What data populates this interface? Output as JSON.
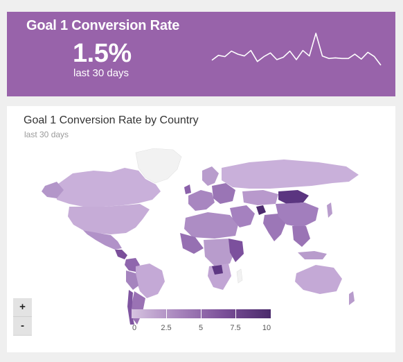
{
  "kpi": {
    "title": "Goal 1 Conversion Rate",
    "value": "1.5%",
    "period": "last 30 days",
    "sparkline": [
      1.4,
      1.48,
      1.46,
      1.55,
      1.5,
      1.47,
      1.56,
      1.38,
      1.46,
      1.52,
      1.41,
      1.45,
      1.55,
      1.41,
      1.56,
      1.47,
      1.84,
      1.47,
      1.43,
      1.44,
      1.43,
      1.43,
      1.5,
      1.42,
      1.53,
      1.46,
      1.32
    ],
    "background_color": "#9863aa",
    "line_color": "#ffffff"
  },
  "map_card": {
    "title": "Goal 1 Conversion Rate by Country",
    "period": "last 30 days",
    "zoom_in_label": "+",
    "zoom_out_label": "-",
    "legend": {
      "ticks": [
        "0",
        "2.5",
        "5",
        "7.5",
        "10"
      ],
      "min": 0,
      "max": 10,
      "colors": [
        "#d6c3e0",
        "#a885bd",
        "#7a4f98",
        "#4a2a6b"
      ]
    },
    "no_data_color": "#f2f2f2"
  }
}
